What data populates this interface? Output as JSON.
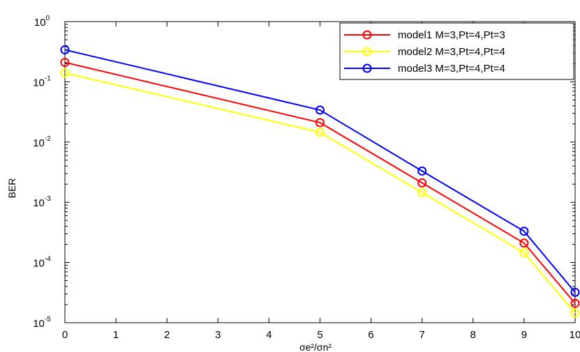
{
  "chart_data": {
    "type": "line",
    "title": "",
    "xlabel": "σe²/σn²",
    "ylabel": "BER",
    "xlim": [
      0,
      10
    ],
    "ylim": [
      1e-05,
      1
    ],
    "yscale": "log",
    "xticks": [
      "0",
      "1",
      "2",
      "3",
      "4",
      "5",
      "6",
      "7",
      "8",
      "9",
      "10"
    ],
    "yticks": [
      {
        "base": "10",
        "exp": "0"
      },
      {
        "base": "10",
        "exp": "-1"
      },
      {
        "base": "10",
        "exp": "-2"
      },
      {
        "base": "10",
        "exp": "-3"
      },
      {
        "base": "10",
        "exp": "-4"
      },
      {
        "base": "10",
        "exp": "-5"
      }
    ],
    "grid": false,
    "legend_position": "top-right",
    "marker": "circle",
    "x": [
      0,
      5,
      7,
      9,
      10
    ],
    "series": [
      {
        "name": "model1 M=3,Pt=4,Pt=3",
        "color": "#ff0000",
        "values": [
          0.21,
          0.021,
          0.0021,
          0.00021,
          2.1e-05
        ]
      },
      {
        "name": "model2 M=3,Pt=4,Pt=4",
        "color": "#ffff00",
        "values": [
          0.14,
          0.0145,
          0.00145,
          0.000145,
          1.45e-05
        ]
      },
      {
        "name": "model3 M=3,Pt=4,Pt=4",
        "color": "#0000ff",
        "values": [
          0.34,
          0.034,
          0.0033,
          0.00033,
          3.2e-05
        ]
      }
    ]
  }
}
